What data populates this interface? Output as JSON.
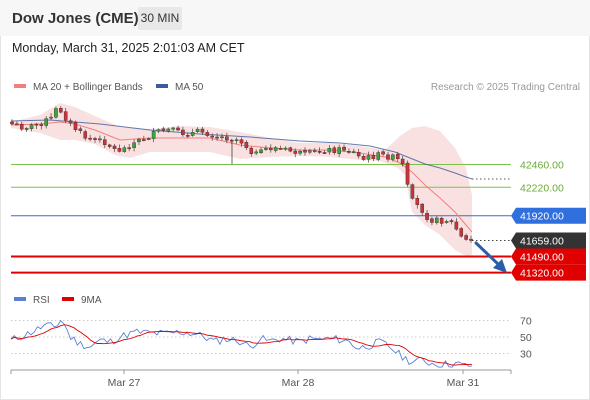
{
  "header": {
    "title": "Dow Jones (CME)",
    "timeframe": "30 MIN"
  },
  "timestamp": "Monday, March 31, 2025 2:01:03 AM CET",
  "credit": "Research © 2025 Trading Central",
  "colors": {
    "bollinger": "#f08080",
    "ma50": "#3b5b9a",
    "support": "#e00000",
    "pivot": "#2f6fde",
    "resistance": "#7cc24a",
    "price_tag": "#333333",
    "arrow": "#2a5fa8",
    "rsi": "#5b7fd6",
    "rsi_ma": "#e00000"
  },
  "chart_data": [
    {
      "type": "candlestick",
      "legend": [
        {
          "name": "MA 20 + Bollinger Bands",
          "color": "#f08080"
        },
        {
          "name": "MA 50",
          "color": "#3b5b9a"
        }
      ],
      "x_ticks": [
        "Mar 27",
        "Mar 28",
        "Mar 31"
      ],
      "y_range": [
        41200,
        42900
      ],
      "levels": [
        {
          "value": 42460,
          "label": "42460.00",
          "kind": "resistance"
        },
        {
          "value": 42220,
          "label": "42220.00",
          "kind": "resistance"
        },
        {
          "value": 41920,
          "label": "41920.00",
          "kind": "pivot"
        },
        {
          "value": 41659,
          "label": "41659.00",
          "kind": "last-price"
        },
        {
          "value": 41490,
          "label": "41490.00",
          "kind": "support"
        },
        {
          "value": 41320,
          "label": "41320.00",
          "kind": "support"
        }
      ],
      "direction": "down"
    },
    {
      "type": "line",
      "legend": [
        {
          "name": "RSI",
          "color": "#5b7fd6"
        },
        {
          "name": "9MA",
          "color": "#e00000"
        }
      ],
      "y_ticks": [
        "70",
        "50",
        "30"
      ],
      "y_range": [
        10,
        85
      ]
    }
  ]
}
